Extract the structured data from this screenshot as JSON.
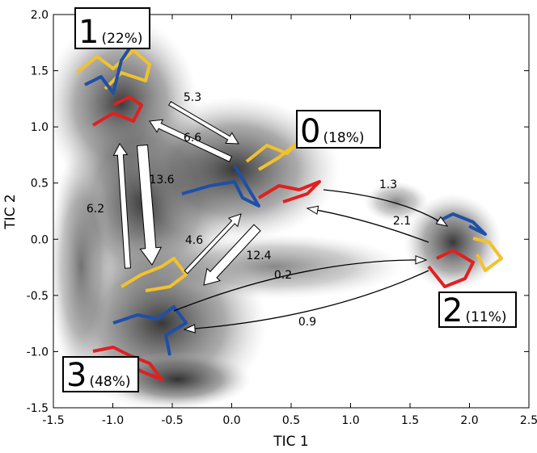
{
  "chart_data": {
    "type": "density",
    "xlabel": "TIC 1",
    "ylabel": "TIC 2",
    "xlim": [
      -1.5,
      2.5
    ],
    "ylim": [
      -1.5,
      2.0
    ],
    "xticks": [
      -1.5,
      {
        "value": -1.0,
        "label": "-1.0"
      },
      -0.5,
      {
        "value": 0.0,
        "label": "0.0"
      },
      0.5,
      {
        "value": 1.0,
        "label": "1.0"
      },
      1.5,
      {
        "value": 2.0,
        "label": "2.0"
      },
      2.5
    ],
    "yticks": [
      -1.5,
      {
        "value": -1.0,
        "label": "-1.0"
      },
      -0.5,
      {
        "value": 0.0,
        "label": "0.0"
      },
      0.5,
      {
        "value": 1.0,
        "label": "1.0"
      },
      1.5,
      {
        "value": 2.0,
        "label": "2.0"
      }
    ],
    "states": {
      "names": [
        "1",
        "0",
        "2",
        "3"
      ],
      "values": [
        22,
        18,
        11,
        48
      ],
      "value_labels": [
        "(22%)",
        "(18%)",
        "(11%)",
        "(48%)"
      ]
    },
    "transitions": {
      "values": [
        5.3,
        6.6,
        13.6,
        6.2,
        4.6,
        12.4,
        1.3,
        2.1,
        0.2,
        0.9
      ]
    }
  }
}
